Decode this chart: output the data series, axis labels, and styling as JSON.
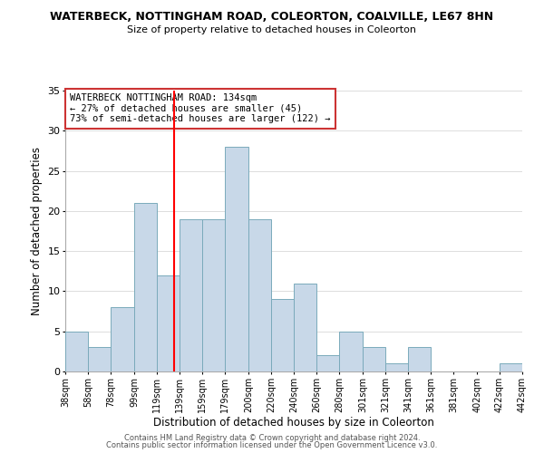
{
  "title": "WATERBECK, NOTTINGHAM ROAD, COLEORTON, COALVILLE, LE67 8HN",
  "subtitle": "Size of property relative to detached houses in Coleorton",
  "xlabel": "Distribution of detached houses by size in Coleorton",
  "ylabel": "Number of detached properties",
  "bar_color": "#c8d8e8",
  "bar_edge_color": "#7aaabb",
  "vline_x": 134,
  "vline_color": "red",
  "bin_edges": [
    38,
    58,
    78,
    99,
    119,
    139,
    159,
    179,
    200,
    220,
    240,
    260,
    280,
    301,
    321,
    341,
    361,
    381,
    402,
    422,
    442
  ],
  "bar_heights": [
    5,
    3,
    8,
    21,
    12,
    19,
    19,
    28,
    19,
    9,
    11,
    2,
    5,
    3,
    1,
    3,
    0,
    0,
    0,
    1
  ],
  "ylim": [
    0,
    35
  ],
  "yticks": [
    0,
    5,
    10,
    15,
    20,
    25,
    30,
    35
  ],
  "annotation_title": "WATERBECK NOTTINGHAM ROAD: 134sqm",
  "annotation_line1": "← 27% of detached houses are smaller (45)",
  "annotation_line2": "73% of semi-detached houses are larger (122) →",
  "footer1": "Contains HM Land Registry data © Crown copyright and database right 2024.",
  "footer2": "Contains public sector information licensed under the Open Government Licence v3.0.",
  "tick_labels": [
    "38sqm",
    "58sqm",
    "78sqm",
    "99sqm",
    "119sqm",
    "139sqm",
    "159sqm",
    "179sqm",
    "200sqm",
    "220sqm",
    "240sqm",
    "260sqm",
    "280sqm",
    "301sqm",
    "321sqm",
    "341sqm",
    "361sqm",
    "381sqm",
    "402sqm",
    "422sqm",
    "442sqm"
  ],
  "background_color": "#ffffff",
  "grid_color": "#dddddd"
}
